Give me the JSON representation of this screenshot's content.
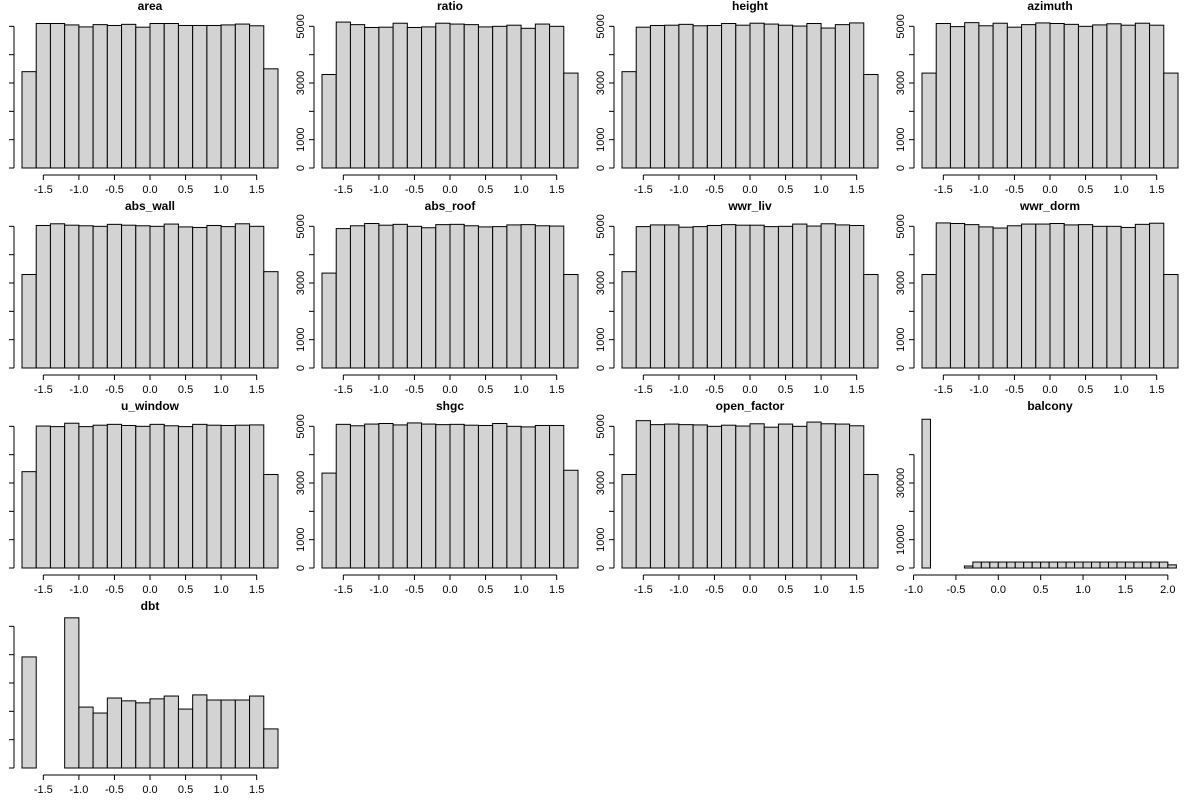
{
  "chart_data": [
    {
      "type": "histogram",
      "title": "area",
      "color": "#d3d3d3",
      "bins": [
        -1.8,
        -1.6,
        -1.4,
        -1.2,
        -1,
        -0.8,
        -0.6,
        -0.4,
        -0.2,
        0,
        0.2,
        0.4,
        0.6,
        0.8,
        1,
        1.2,
        1.4,
        1.6,
        1.8
      ],
      "values": [
        3400,
        5100,
        5100,
        5050,
        4980,
        5060,
        5030,
        5070,
        4970,
        5100,
        5100,
        5030,
        5030,
        5030,
        5050,
        5080,
        5020,
        3500
      ],
      "xlim": [
        -1.8,
        1.8
      ],
      "ylim": [
        0,
        5400
      ],
      "xticks": [
        -1.5,
        {
          "value": -1,
          "label": "-1.0"
        },
        -0.5,
        {
          "value": 0,
          "label": "0.0"
        },
        0.5,
        {
          "value": 1,
          "label": "1.0"
        },
        1.5
      ],
      "yticks": [],
      "yticks_unlabeled": [
        0,
        1000,
        2000,
        3000,
        4000,
        5000
      ]
    },
    {
      "type": "histogram",
      "title": "ratio",
      "color": "#d3d3d3",
      "bins": [
        -1.8,
        -1.6,
        -1.4,
        -1.2,
        -1,
        -0.8,
        -0.6,
        -0.4,
        -0.2,
        0,
        0.2,
        0.4,
        0.6,
        0.8,
        1,
        1.2,
        1.4,
        1.6,
        1.8
      ],
      "values": [
        3300,
        5150,
        5060,
        4960,
        4970,
        5110,
        4960,
        4980,
        5110,
        5080,
        5060,
        4980,
        5000,
        5040,
        4930,
        5080,
        5000,
        3350
      ],
      "xlim": [
        -1.8,
        1.8
      ],
      "ylim": [
        0,
        5400
      ],
      "xticks": [
        -1.5,
        {
          "value": -1,
          "label": "-1.0"
        },
        -0.5,
        {
          "value": 0,
          "label": "0.0"
        },
        0.5,
        {
          "value": 1,
          "label": "1.0"
        },
        1.5
      ],
      "yticks": [
        0,
        1000,
        3000,
        5000
      ],
      "yticks_unlabeled": [
        2000,
        4000
      ]
    },
    {
      "type": "histogram",
      "title": "height",
      "color": "#d3d3d3",
      "bins": [
        -1.8,
        -1.6,
        -1.4,
        -1.2,
        -1,
        -0.8,
        -0.6,
        -0.4,
        -0.2,
        0,
        0.2,
        0.4,
        0.6,
        0.8,
        1,
        1.2,
        1.4,
        1.6,
        1.8
      ],
      "values": [
        3400,
        4970,
        5030,
        5040,
        5070,
        5020,
        5030,
        5100,
        5040,
        5110,
        5080,
        5040,
        5010,
        5100,
        4940,
        5060,
        5120,
        3300
      ],
      "xlim": [
        -1.8,
        1.8
      ],
      "ylim": [
        0,
        5400
      ],
      "xticks": [
        -1.5,
        {
          "value": -1,
          "label": "-1.0"
        },
        -0.5,
        {
          "value": 0,
          "label": "0.0"
        },
        0.5,
        {
          "value": 1,
          "label": "1.0"
        },
        1.5
      ],
      "yticks": [
        0,
        1000,
        3000,
        5000
      ],
      "yticks_unlabeled": [
        2000,
        4000
      ]
    },
    {
      "type": "histogram",
      "title": "azimuth",
      "color": "#d3d3d3",
      "bins": [
        -1.8,
        -1.6,
        -1.4,
        -1.2,
        -1,
        -0.8,
        -0.6,
        -0.4,
        -0.2,
        0,
        0.2,
        0.4,
        0.6,
        0.8,
        1,
        1.2,
        1.4,
        1.6,
        1.8
      ],
      "values": [
        3350,
        5100,
        4990,
        5130,
        5020,
        5110,
        4970,
        5060,
        5120,
        5100,
        5070,
        5000,
        5050,
        5090,
        5040,
        5110,
        5040,
        3350
      ],
      "xlim": [
        -1.8,
        1.8
      ],
      "ylim": [
        0,
        5400
      ],
      "xticks": [
        -1.5,
        {
          "value": -1,
          "label": "-1.0"
        },
        -0.5,
        {
          "value": 0,
          "label": "0.0"
        },
        0.5,
        {
          "value": 1,
          "label": "1.0"
        },
        1.5
      ],
      "yticks": [
        0,
        1000,
        3000,
        5000
      ],
      "yticks_unlabeled": [
        2000,
        4000
      ]
    },
    {
      "type": "histogram",
      "title": "abs_wall",
      "color": "#d3d3d3",
      "bins": [
        -1.8,
        -1.6,
        -1.4,
        -1.2,
        -1,
        -0.8,
        -0.6,
        -0.4,
        -0.2,
        0,
        0.2,
        0.4,
        0.6,
        0.8,
        1,
        1.2,
        1.4,
        1.6,
        1.8
      ],
      "values": [
        3300,
        5030,
        5090,
        5040,
        5020,
        5000,
        5070,
        5040,
        5020,
        5000,
        5080,
        4980,
        4960,
        5030,
        4990,
        5090,
        5000,
        3400
      ],
      "xlim": [
        -1.8,
        1.8
      ],
      "ylim": [
        0,
        5400
      ],
      "xticks": [
        -1.5,
        {
          "value": -1,
          "label": "-1.0"
        },
        -0.5,
        {
          "value": 0,
          "label": "0.0"
        },
        0.5,
        {
          "value": 1,
          "label": "1.0"
        },
        1.5
      ],
      "yticks": [],
      "yticks_unlabeled": [
        0,
        1000,
        2000,
        3000,
        4000,
        5000
      ]
    },
    {
      "type": "histogram",
      "title": "abs_roof",
      "color": "#d3d3d3",
      "bins": [
        -1.8,
        -1.6,
        -1.4,
        -1.2,
        -1,
        -0.8,
        -0.6,
        -0.4,
        -0.2,
        0,
        0.2,
        0.4,
        0.6,
        0.8,
        1,
        1.2,
        1.4,
        1.6,
        1.8
      ],
      "values": [
        3350,
        4920,
        5020,
        5100,
        5040,
        5070,
        5000,
        4950,
        5060,
        5070,
        5020,
        4980,
        4990,
        5050,
        5060,
        5020,
        5010,
        3300
      ],
      "xlim": [
        -1.8,
        1.8
      ],
      "ylim": [
        0,
        5400
      ],
      "xticks": [
        -1.5,
        {
          "value": -1,
          "label": "-1.0"
        },
        -0.5,
        {
          "value": 0,
          "label": "0.0"
        },
        0.5,
        {
          "value": 1,
          "label": "1.0"
        },
        1.5
      ],
      "yticks": [
        0,
        1000,
        3000,
        5000
      ],
      "yticks_unlabeled": [
        2000,
        4000
      ]
    },
    {
      "type": "histogram",
      "title": "wwr_liv",
      "color": "#d3d3d3",
      "bins": [
        -1.8,
        -1.6,
        -1.4,
        -1.2,
        -1,
        -0.8,
        -0.6,
        -0.4,
        -0.2,
        0,
        0.2,
        0.4,
        0.6,
        0.8,
        1,
        1.2,
        1.4,
        1.6,
        1.8
      ],
      "values": [
        3400,
        4990,
        5050,
        5050,
        4970,
        4990,
        5030,
        5060,
        5040,
        5040,
        4990,
        5000,
        5080,
        5010,
        5090,
        5050,
        5030,
        3300
      ],
      "xlim": [
        -1.8,
        1.8
      ],
      "ylim": [
        0,
        5400
      ],
      "xticks": [
        -1.5,
        {
          "value": -1,
          "label": "-1.0"
        },
        -0.5,
        {
          "value": 0,
          "label": "0.0"
        },
        0.5,
        {
          "value": 1,
          "label": "1.0"
        },
        1.5
      ],
      "yticks": [
        0,
        1000,
        3000,
        5000
      ],
      "yticks_unlabeled": [
        2000,
        4000
      ]
    },
    {
      "type": "histogram",
      "title": "wwr_dorm",
      "color": "#d3d3d3",
      "bins": [
        -1.8,
        -1.6,
        -1.4,
        -1.2,
        -1,
        -0.8,
        -0.6,
        -0.4,
        -0.2,
        0,
        0.2,
        0.4,
        0.6,
        0.8,
        1,
        1.2,
        1.4,
        1.6,
        1.8
      ],
      "values": [
        3300,
        5120,
        5100,
        5060,
        4980,
        4940,
        5020,
        5080,
        5080,
        5100,
        5050,
        5060,
        5000,
        5000,
        4960,
        5070,
        5110,
        3300
      ],
      "xlim": [
        -1.8,
        1.8
      ],
      "ylim": [
        0,
        5400
      ],
      "xticks": [
        -1.5,
        {
          "value": -1,
          "label": "-1.0"
        },
        -0.5,
        {
          "value": 0,
          "label": "0.0"
        },
        0.5,
        {
          "value": 1,
          "label": "1.0"
        },
        1.5
      ],
      "yticks": [
        0,
        1000,
        3000,
        5000
      ],
      "yticks_unlabeled": [
        2000,
        4000
      ]
    },
    {
      "type": "histogram",
      "title": "u_window",
      "color": "#d3d3d3",
      "bins": [
        -1.8,
        -1.6,
        -1.4,
        -1.2,
        -1,
        -0.8,
        -0.6,
        -0.4,
        -0.2,
        0,
        0.2,
        0.4,
        0.6,
        0.8,
        1,
        1.2,
        1.4,
        1.6,
        1.8
      ],
      "values": [
        3400,
        5010,
        4990,
        5110,
        4990,
        5040,
        5070,
        5030,
        5000,
        5070,
        5020,
        4990,
        5070,
        5040,
        5030,
        5040,
        5050,
        3300
      ],
      "xlim": [
        -1.8,
        1.8
      ],
      "ylim": [
        0,
        5400
      ],
      "xticks": [
        -1.5,
        {
          "value": -1,
          "label": "-1.0"
        },
        -0.5,
        {
          "value": 0,
          "label": "0.0"
        },
        0.5,
        {
          "value": 1,
          "label": "1.0"
        },
        1.5
      ],
      "yticks": [],
      "yticks_unlabeled": [
        0,
        1000,
        2000,
        3000,
        4000,
        5000
      ]
    },
    {
      "type": "histogram",
      "title": "shgc",
      "color": "#d3d3d3",
      "bins": [
        -1.8,
        -1.6,
        -1.4,
        -1.2,
        -1,
        -0.8,
        -0.6,
        -0.4,
        -0.2,
        0,
        0.2,
        0.4,
        0.6,
        0.8,
        1,
        1.2,
        1.4,
        1.6,
        1.8
      ],
      "values": [
        3350,
        5070,
        5020,
        5080,
        5100,
        5050,
        5120,
        5080,
        5060,
        5070,
        5040,
        5030,
        5100,
        5000,
        4980,
        5030,
        5030,
        3450
      ],
      "xlim": [
        -1.8,
        1.8
      ],
      "ylim": [
        0,
        5400
      ],
      "xticks": [
        -1.5,
        {
          "value": -1,
          "label": "-1.0"
        },
        -0.5,
        {
          "value": 0,
          "label": "0.0"
        },
        0.5,
        {
          "value": 1,
          "label": "1.0"
        },
        1.5
      ],
      "yticks": [
        0,
        1000,
        3000,
        5000
      ],
      "yticks_unlabeled": [
        2000,
        4000
      ]
    },
    {
      "type": "histogram",
      "title": "open_factor",
      "color": "#d3d3d3",
      "bins": [
        -1.8,
        -1.6,
        -1.4,
        -1.2,
        -1,
        -0.8,
        -0.6,
        -0.4,
        -0.2,
        0,
        0.2,
        0.4,
        0.6,
        0.8,
        1,
        1.2,
        1.4,
        1.6,
        1.8
      ],
      "values": [
        3300,
        5200,
        5060,
        5080,
        5060,
        5050,
        5000,
        5040,
        5010,
        5090,
        4970,
        5080,
        5000,
        5150,
        5090,
        5080,
        5020,
        3300
      ],
      "xlim": [
        -1.8,
        1.8
      ],
      "ylim": [
        0,
        5400
      ],
      "xticks": [
        -1.5,
        {
          "value": -1,
          "label": "-1.0"
        },
        -0.5,
        {
          "value": 0,
          "label": "0.0"
        },
        0.5,
        {
          "value": 1,
          "label": "1.0"
        },
        1.5
      ],
      "yticks": [
        0,
        1000,
        3000,
        5000
      ],
      "yticks_unlabeled": [
        2000,
        4000
      ]
    },
    {
      "type": "histogram",
      "title": "balcony",
      "color": "#d3d3d3",
      "bins": [
        -0.9,
        -0.8,
        -0.7,
        -0.6,
        -0.5,
        -0.4,
        -0.3,
        -0.2,
        -0.1,
        0,
        0.1,
        0.2,
        0.3,
        0.4,
        0.5,
        0.6,
        0.7,
        0.8,
        0.9,
        1,
        1.1,
        1.2,
        1.3,
        1.4,
        1.5,
        1.6,
        1.7,
        1.8,
        1.9,
        2,
        2.1
      ],
      "values": [
        52500,
        0,
        0,
        0,
        0,
        700,
        2100,
        2100,
        2100,
        2100,
        2100,
        2100,
        2100,
        2100,
        2100,
        2100,
        2100,
        2100,
        2100,
        2100,
        2100,
        2100,
        2100,
        2100,
        2100,
        2100,
        2100,
        2100,
        2100,
        1100
      ],
      "xlim": [
        -0.9,
        2.12
      ],
      "ylim": [
        0,
        54000
      ],
      "xticks": [
        {
          "value": -1,
          "label": "-1.0"
        },
        -0.5,
        {
          "value": 0,
          "label": "0.0"
        },
        0.5,
        {
          "value": 1,
          "label": "1.0"
        },
        1.5,
        {
          "value": 2,
          "label": "2.0"
        }
      ],
      "yticks": [
        0,
        10000,
        30000
      ],
      "yticks_unlabeled": [
        20000,
        40000
      ]
    },
    {
      "type": "histogram",
      "title": "dbt",
      "color": "#d3d3d3",
      "bins": [
        -1.8,
        -1.6,
        -1.4,
        -1.2,
        -1,
        -0.8,
        -0.6,
        -0.4,
        -0.2,
        0,
        0.2,
        0.4,
        0.6,
        0.8,
        1,
        1.2,
        1.4,
        1.6,
        1.8
      ],
      "values": [
        3920,
        0,
        0,
        5300,
        2150,
        1940,
        2470,
        2370,
        2300,
        2440,
        2540,
        2080,
        2580,
        2400,
        2400,
        2400,
        2540,
        1380
      ],
      "xlim": [
        -1.8,
        1.8
      ],
      "ylim": [
        0,
        5400
      ],
      "xticks": [
        -1.5,
        {
          "value": -1,
          "label": "-1.0"
        },
        -0.5,
        {
          "value": 0,
          "label": "0.0"
        },
        0.5,
        {
          "value": 1,
          "label": "1.0"
        },
        1.5
      ],
      "yticks": [],
      "yticks_unlabeled": [
        0,
        1000,
        2000,
        3000,
        4000,
        5000
      ]
    }
  ]
}
